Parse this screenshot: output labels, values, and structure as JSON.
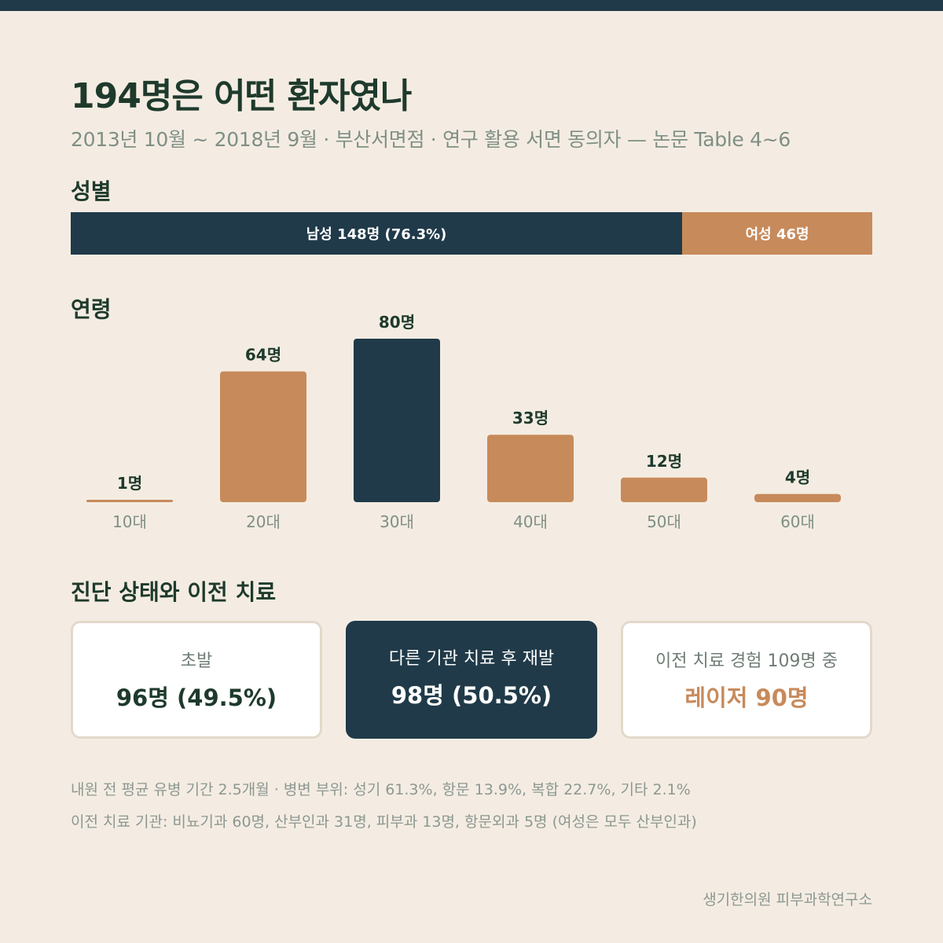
{
  "title": "194명은 어떤 환자였나",
  "subtitle": "2013년 10월 ~ 2018년 9월 · 부산서면점 · 연구 활용 서면 동의자 — 논문 Table 4~6",
  "sections": {
    "gender": "성별",
    "age": "연령",
    "diagnosis": "진단 상태와 이전 치료"
  },
  "gender": {
    "male": {
      "label": "남성 148명 (76.3%)",
      "value": 148
    },
    "female": {
      "label": "여성 46명",
      "value": 46
    }
  },
  "colors": {
    "primary": "#203a49",
    "accent": "#c78a5b",
    "background": "#f4ece2"
  },
  "chart_data": {
    "type": "bar",
    "categories": [
      "10대",
      "20대",
      "30대",
      "40대",
      "50대",
      "60대"
    ],
    "values": [
      1,
      64,
      80,
      33,
      12,
      4
    ],
    "value_labels": [
      "1명",
      "64명",
      "80명",
      "33명",
      "12명",
      "4명"
    ],
    "highlight_index": 2,
    "title": "연령",
    "xlabel": "",
    "ylabel": "",
    "grid": false
  },
  "cards": [
    {
      "label": "초발",
      "value": "96명 (49.5%)",
      "style": "light"
    },
    {
      "label": "다른 기관 치료 후 재발",
      "value": "98명 (50.5%)",
      "style": "dark"
    },
    {
      "label": "이전 치료 경험 109명 중",
      "value": "레이저 90명",
      "style": "light-accent"
    }
  ],
  "notes": [
    "내원 전 평균 유병 기간 2.5개월 · 병변 부위: 성기 61.3%, 항문 13.9%, 복합 22.7%, 기타 2.1%",
    "이전 치료 기관: 비뇨기과 60명, 산부인과 31명, 피부과 13명, 항문외과 5명 (여성은 모두 산부인과)"
  ],
  "footer": "생기한의원 피부과학연구소"
}
